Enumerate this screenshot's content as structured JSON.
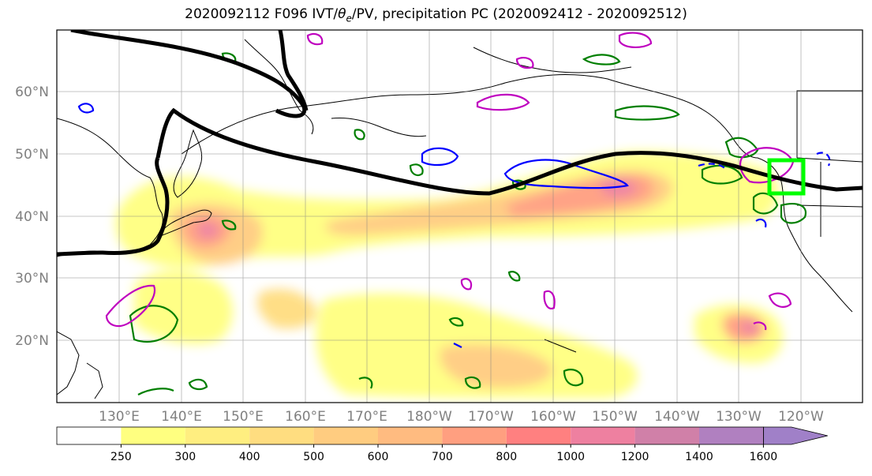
{
  "figure": {
    "title_prefix": "2020092112 F096 IVT/",
    "title_theta": "θ",
    "title_sub": "e",
    "title_suffix": "/PV, precipitation PC (2020092412 - 2020092512)"
  },
  "map": {
    "lon_labels": [
      "130°E",
      "140°E",
      "150°E",
      "160°E",
      "170°E",
      "180°W",
      "170°W",
      "160°W",
      "150°W",
      "140°W",
      "130°W",
      "120°W"
    ],
    "lat_labels": [
      "60°N",
      "50°N",
      "40°N",
      "30°N",
      "20°N"
    ],
    "lat_values": [
      60,
      50,
      40,
      30,
      20
    ],
    "lon_values": [
      130,
      140,
      150,
      160,
      170,
      180,
      190,
      200,
      210,
      220,
      230,
      240
    ],
    "lon_range": [
      120,
      255
    ],
    "lat_range": [
      10,
      70
    ],
    "grid": true,
    "label_color": "#808080",
    "contour_colors": {
      "pv_line": "#000000",
      "theta_e_positive": "#007f00",
      "theta_e_negative": "#0000ff",
      "precip_pc": "#bf00bf",
      "target_box": "#00ff00"
    }
  },
  "colorbar": {
    "levels": [
      "250",
      "300",
      "400",
      "500",
      "600",
      "700",
      "800",
      "1000",
      "1200",
      "1400",
      "1600"
    ],
    "colors": [
      "#ffffff",
      "#ffff80",
      "#ffee80",
      "#ffdd80",
      "#ffcc80",
      "#ffbb80",
      "#ff9f80",
      "#ff8080",
      "#ee80a0",
      "#d080a8",
      "#b080c0",
      "#a080c8"
    ],
    "extend": "max"
  }
}
